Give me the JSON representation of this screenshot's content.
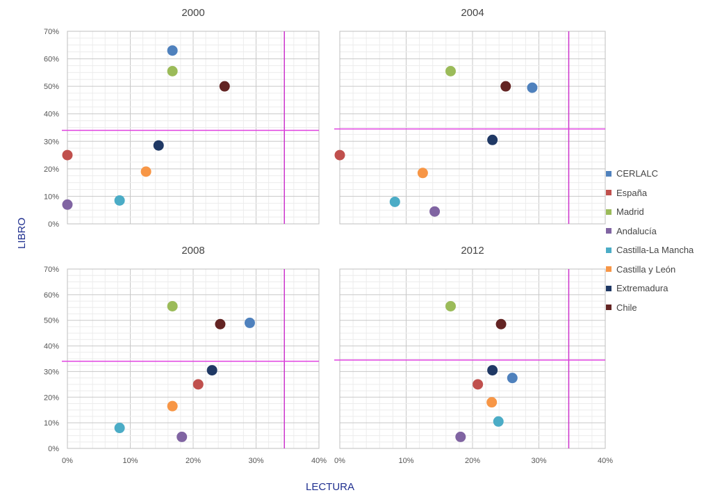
{
  "axis": {
    "x_title": "LECTURA",
    "y_title": "LIBRO"
  },
  "legend": [
    {
      "name": "CERLALC",
      "color": "#4f81bd"
    },
    {
      "name": "España",
      "color": "#c0504d"
    },
    {
      "name": "Madrid",
      "color": "#9bbb59"
    },
    {
      "name": "Andalucía",
      "color": "#8064a2"
    },
    {
      "name": "Castilla-La Mancha",
      "color": "#4bacc6"
    },
    {
      "name": "Castilla y León",
      "color": "#f79646"
    },
    {
      "name": "Extremadura",
      "color": "#1f3864"
    },
    {
      "name": "Chile",
      "color": "#632423"
    }
  ],
  "chart_data": [
    {
      "type": "scatter",
      "title": "2000",
      "xlim": [
        0,
        40
      ],
      "ylim": [
        0,
        70
      ],
      "x_ticks": [
        "0%",
        "10%",
        "20%",
        "30%",
        "40%"
      ],
      "y_ticks": [
        "0%",
        "10%",
        "20%",
        "30%",
        "40%",
        "50%",
        "60%",
        "70%"
      ],
      "reference_lines": {
        "x": 34.5,
        "y": 34
      },
      "points": [
        {
          "series": "CERLALC",
          "x": 16.7,
          "y": 63
        },
        {
          "series": "España",
          "x": 0,
          "y": 25
        },
        {
          "series": "Madrid",
          "x": 16.7,
          "y": 55.5
        },
        {
          "series": "Andalucía",
          "x": 0,
          "y": 7
        },
        {
          "series": "Castilla-La Mancha",
          "x": 8.3,
          "y": 8.5
        },
        {
          "series": "Castilla y León",
          "x": 12.5,
          "y": 19
        },
        {
          "series": "Extremadura",
          "x": 14.5,
          "y": 28.5
        },
        {
          "series": "Chile",
          "x": 25,
          "y": 50
        }
      ]
    },
    {
      "type": "scatter",
      "title": "2004",
      "xlim": [
        0,
        40
      ],
      "ylim": [
        0,
        70
      ],
      "x_ticks": [
        "0%",
        "10%",
        "20%",
        "30%",
        "40%"
      ],
      "y_ticks": [
        "0%",
        "10%",
        "20%",
        "30%",
        "40%",
        "50%",
        "60%",
        "70%"
      ],
      "reference_lines": {
        "x": 34.5,
        "y": 34.5
      },
      "points": [
        {
          "series": "CERLALC",
          "x": 29,
          "y": 49.5
        },
        {
          "series": "España",
          "x": 0,
          "y": 25
        },
        {
          "series": "Madrid",
          "x": 16.7,
          "y": 55.5
        },
        {
          "series": "Andalucía",
          "x": 14.3,
          "y": 4.5
        },
        {
          "series": "Castilla-La Mancha",
          "x": 8.3,
          "y": 8
        },
        {
          "series": "Castilla y León",
          "x": 12.5,
          "y": 18.5
        },
        {
          "series": "Extremadura",
          "x": 23,
          "y": 30.5
        },
        {
          "series": "Chile",
          "x": 25,
          "y": 50
        }
      ]
    },
    {
      "type": "scatter",
      "title": "2008",
      "xlim": [
        0,
        40
      ],
      "ylim": [
        0,
        70
      ],
      "x_ticks": [
        "0%",
        "10%",
        "20%",
        "30%",
        "40%"
      ],
      "y_ticks": [
        "0%",
        "10%",
        "20%",
        "30%",
        "40%",
        "50%",
        "60%",
        "70%"
      ],
      "reference_lines": {
        "x": 34.5,
        "y": 34
      },
      "points": [
        {
          "series": "CERLALC",
          "x": 29,
          "y": 49
        },
        {
          "series": "España",
          "x": 20.8,
          "y": 25
        },
        {
          "series": "Madrid",
          "x": 16.7,
          "y": 55.5
        },
        {
          "series": "Andalucía",
          "x": 18.2,
          "y": 4.5
        },
        {
          "series": "Castilla-La Mancha",
          "x": 8.3,
          "y": 8
        },
        {
          "series": "Castilla y León",
          "x": 16.7,
          "y": 16.5
        },
        {
          "series": "Extremadura",
          "x": 23,
          "y": 30.5
        },
        {
          "series": "Chile",
          "x": 24.3,
          "y": 48.5
        }
      ]
    },
    {
      "type": "scatter",
      "title": "2012",
      "xlim": [
        0,
        40
      ],
      "ylim": [
        0,
        70
      ],
      "x_ticks": [
        "0%",
        "10%",
        "20%",
        "30%",
        "40%"
      ],
      "y_ticks": [
        "0%",
        "10%",
        "20%",
        "30%",
        "40%",
        "50%",
        "60%",
        "70%"
      ],
      "reference_lines": {
        "x": 34.5,
        "y": 34.5
      },
      "points": [
        {
          "series": "CERLALC",
          "x": 26,
          "y": 27.5
        },
        {
          "series": "España",
          "x": 20.8,
          "y": 25
        },
        {
          "series": "Madrid",
          "x": 16.7,
          "y": 55.5
        },
        {
          "series": "Andalucía",
          "x": 18.2,
          "y": 4.5
        },
        {
          "series": "Castilla-La Mancha",
          "x": 23.9,
          "y": 10.5
        },
        {
          "series": "Castilla y León",
          "x": 22.9,
          "y": 18
        },
        {
          "series": "Extremadura",
          "x": 23,
          "y": 30.5
        },
        {
          "series": "Chile",
          "x": 24.3,
          "y": 48.5
        }
      ]
    }
  ]
}
